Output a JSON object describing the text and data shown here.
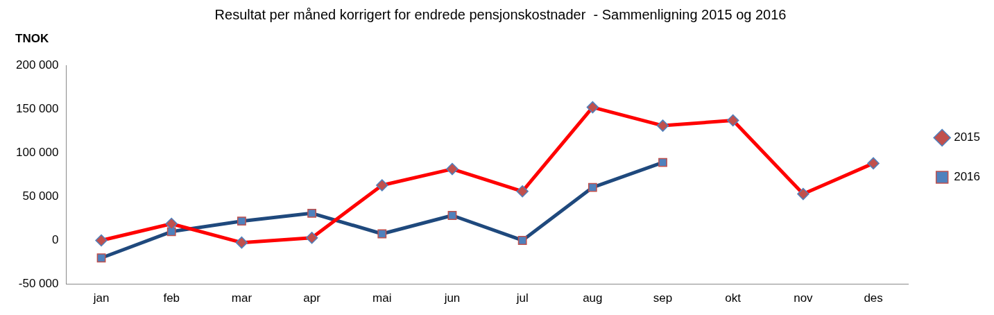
{
  "chart_data": {
    "type": "line",
    "title": "Resultat per måned korrigert for endrede pensjonskostnader  - Sammenligning 2015 og 2016",
    "ylabel": "TNOK",
    "categories": [
      "jan",
      "feb",
      "mar",
      "apr",
      "mai",
      "jun",
      "jul",
      "aug",
      "sep",
      "okt",
      "nov",
      "des"
    ],
    "series": [
      {
        "name": "2015",
        "color": "#ff0000",
        "marker": "diamond",
        "values": [
          0,
          19000,
          -2500,
          3000,
          63000,
          81500,
          56000,
          152000,
          131000,
          137000,
          53000,
          88000
        ]
      },
      {
        "name": "2016",
        "color": "#1f497d",
        "marker": "square",
        "values": [
          -20000,
          10000,
          22000,
          31000,
          7500,
          28500,
          0,
          60500,
          89000,
          null,
          null,
          null
        ]
      }
    ],
    "ylim": [
      -50000,
      200000
    ],
    "yticks": [
      {
        "value": -50000,
        "label": "-50 000"
      },
      0,
      {
        "value": 50000,
        "label": "50 000"
      },
      {
        "value": 100000,
        "label": "100 000"
      },
      {
        "value": 150000,
        "label": "150 000"
      },
      {
        "value": 200000,
        "label": "200 000"
      }
    ],
    "grid": false,
    "legend": "right",
    "line_style": "solid"
  }
}
